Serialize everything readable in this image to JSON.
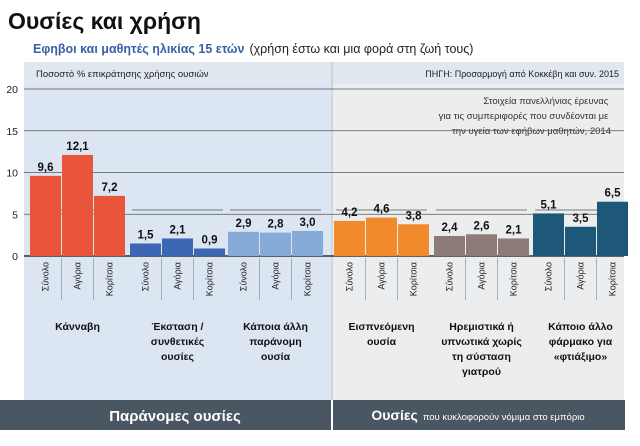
{
  "header": {
    "title": "Ουσίες και χρήση",
    "subtitle_bold": "Εφηβοι και μαθητές ηλικίας 15 ετών",
    "subtitle_rest": "(χρήση έστω και μια φορά στη ζωή τους)",
    "ylabel": "Ποσοστό % επικράτησης χρήσης ουσιών",
    "source": "ΠΗΓΗ: Προσαρμογή από Κοκκέβη και συν. 2015",
    "note_lines": [
      "Στοιχεία πανελλήνιας έρευνας",
      "για τις συμπεριφορές που συνδέονται με",
      "την υγεία των εφήβων μαθητών, 2014"
    ],
    "footer_left": "Παράνομες ουσίες",
    "footer_right_bold": "Ουσίες",
    "footer_right_rest": "που κυκλοφορούν νόμιμα στο εμπόριο"
  },
  "chart_data": {
    "type": "bar",
    "ylim": [
      0,
      20
    ],
    "yticks": [
      0,
      5,
      10,
      15,
      20
    ],
    "grid": true,
    "subcategories": [
      "Σύνολο",
      "Αγόρια",
      "Κορίτσια"
    ],
    "groups": [
      {
        "label_lines": [
          "Κάνναβη"
        ],
        "values": [
          9.6,
          12.1,
          7.2
        ],
        "value_labels": [
          "9,6",
          "12,1",
          "7,2"
        ],
        "color": "#e8553a"
      },
      {
        "label_lines": [
          "Έκσταση /",
          "συνθετικές",
          "ουσίες"
        ],
        "values": [
          1.5,
          2.1,
          0.9
        ],
        "value_labels": [
          "1,5",
          "2,1",
          "0,9"
        ],
        "color": "#3b67b5"
      },
      {
        "label_lines": [
          "Κάποια άλλη",
          "παράνομη",
          "ουσία"
        ],
        "values": [
          2.9,
          2.8,
          3.0
        ],
        "value_labels": [
          "2,9",
          "2,8",
          "3,0"
        ],
        "color": "#86abd9"
      },
      {
        "label_lines": [
          "Εισπνεόμενη",
          "ουσία"
        ],
        "values": [
          4.2,
          4.6,
          3.8
        ],
        "value_labels": [
          "4,2",
          "4,6",
          "3,8"
        ],
        "color": "#f08a2c"
      },
      {
        "label_lines": [
          "Ηρεμιστικά ή",
          "υπνωτικά χωρίς",
          "τη σύσταση",
          "γιατρού"
        ],
        "values": [
          2.4,
          2.6,
          2.1
        ],
        "value_labels": [
          "2,4",
          "2,6",
          "2,1"
        ],
        "color": "#8c7b76"
      },
      {
        "label_lines": [
          "Κάποιο άλλο",
          "φάρμακο για",
          "«φτιάξιμο»"
        ],
        "values": [
          5.1,
          3.5,
          6.5
        ],
        "value_labels": [
          "5,1",
          "3,5",
          "6,5"
        ],
        "color": "#1e5878"
      }
    ]
  }
}
